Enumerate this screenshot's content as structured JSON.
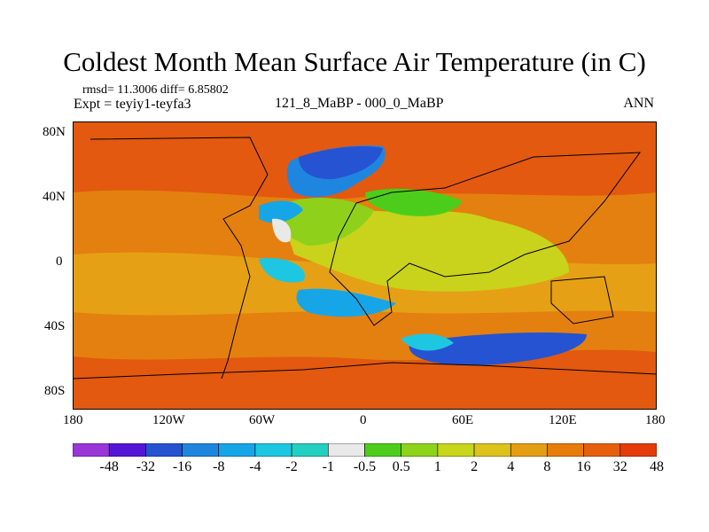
{
  "title": "Coldest Month Mean Surface Air Temperature (in C)",
  "stats": "rmsd= 11.3006 diff= 6.85802",
  "expt": "Expt = teyiy1-teyfa3",
  "period": "121_8_MaBP - 000_0_MaBP",
  "season": "ANN",
  "map": {
    "type": "geographic difference map",
    "lat_ticks": [
      "80N",
      "40N",
      "0",
      "40S",
      "80S"
    ],
    "lon_ticks": [
      "180",
      "120W",
      "60W",
      "0",
      "60E",
      "120E",
      "180"
    ],
    "background_color": "#e2590f"
  },
  "colorbar": {
    "labels": [
      "-48",
      "-32",
      "-16",
      "-8",
      "-4",
      "-2",
      "-1",
      "-0.5",
      "0.5",
      "1",
      "2",
      "4",
      "8",
      "16",
      "32",
      "48"
    ],
    "colors": [
      "#9a36d8",
      "#5316d6",
      "#2553d1",
      "#1f86df",
      "#16a6e8",
      "#1dc7e2",
      "#23cfc0",
      "#e9e9e9",
      "#4dcd1b",
      "#8dd31a",
      "#c7d51b",
      "#ddc21b",
      "#e49e13",
      "#e77c0b",
      "#e55f0d",
      "#e53b0b"
    ]
  }
}
